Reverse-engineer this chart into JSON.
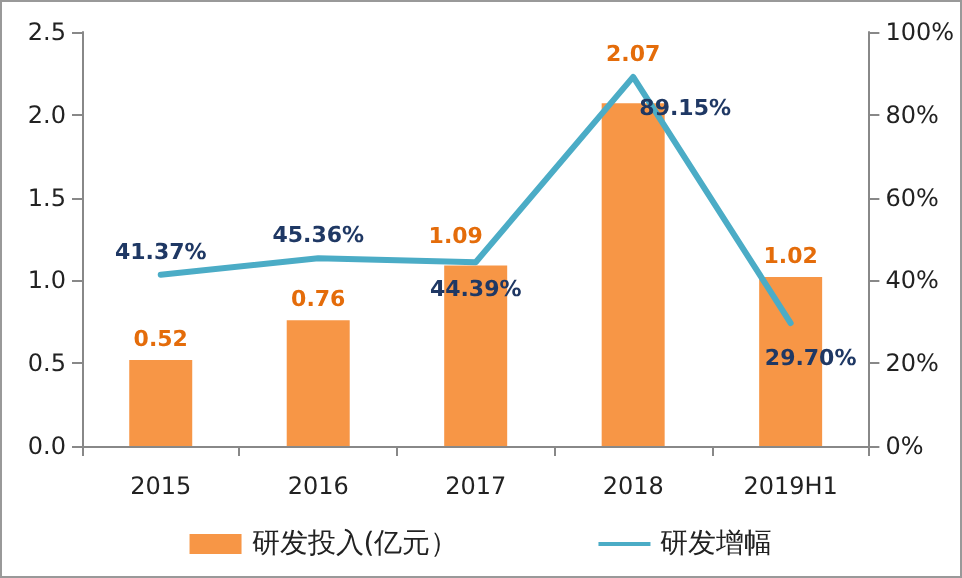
{
  "chart_data": {
    "type": "bar",
    "categories": [
      "2015",
      "2016",
      "2017",
      "2018",
      "2019H1"
    ],
    "series": [
      {
        "name": "研发投入(亿元）",
        "color": "#f79646",
        "values": [
          0.52,
          0.76,
          1.09,
          2.07,
          1.02
        ],
        "value_labels": [
          "0.52",
          "0.76",
          "1.09",
          "2.07",
          "1.02"
        ]
      },
      {
        "name": "研发增幅",
        "type": "line",
        "axis": "y2",
        "color": "#4bacc6",
        "values": [
          41.37,
          45.36,
          44.39,
          89.15,
          29.7
        ],
        "value_labels": [
          "41.37%",
          "45.36%",
          "44.39%",
          "89.15%",
          "29.70%"
        ]
      }
    ],
    "ylim": [
      0,
      2.5
    ],
    "yticks": [
      {
        "value": 0,
        "label": "0.0"
      },
      0.5,
      {
        "value": 1,
        "label": "1.0"
      },
      1.5,
      {
        "value": 2,
        "label": "2.0"
      },
      2.5
    ],
    "y2lim": [
      0,
      100
    ],
    "y2ticks": [
      {
        "value": 0,
        "label": "0%"
      },
      {
        "value": 20,
        "label": "20%"
      },
      {
        "value": 40,
        "label": "40%"
      },
      {
        "value": 60,
        "label": "60%"
      },
      {
        "value": 80,
        "label": "80%"
      },
      {
        "value": 100,
        "label": "100%"
      }
    ],
    "grid": false,
    "legend": "bottom",
    "marker": "none",
    "line_style": "solid"
  }
}
